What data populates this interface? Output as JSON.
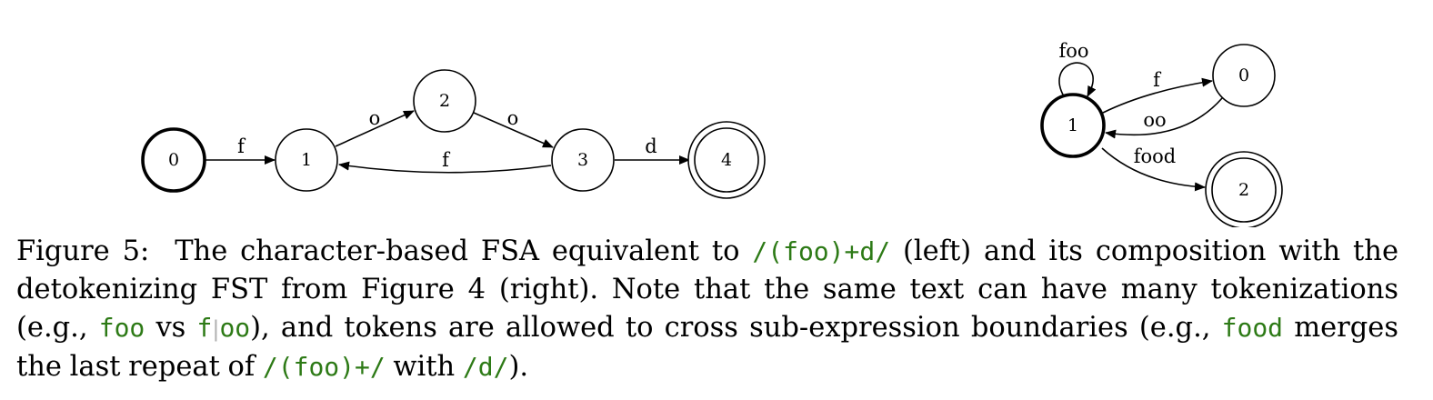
{
  "left_fsa": {
    "nodes": [
      "0",
      "1",
      "2",
      "3",
      "4"
    ],
    "edges": [
      "f",
      "o",
      "o",
      "f",
      "d"
    ]
  },
  "right_fsa": {
    "nodes": [
      "1",
      "0",
      "2"
    ],
    "edges": [
      "foo",
      "f",
      "oo",
      "food"
    ]
  },
  "caption": {
    "label": "Figure 5:",
    "t1": "The character-based FSA equivalent to ",
    "c1": "/(foo)+d/",
    "t2": " (left) and its composition with the detokenizing FST from Figure 4 (right). Note that the same text can have many tokenizations (e.g., ",
    "c2": "foo",
    "t3": " vs ",
    "c3": "f",
    "sep": "|",
    "c4": "oo",
    "t4": "), and tokens are allowed to cross sub-expression boundaries (e.g., ",
    "c5": "food",
    "t5": " merges the last repeat of ",
    "c6": "/(foo)+/",
    "t6": " with ",
    "c7": "/d/",
    "t7": ")."
  },
  "colors": {
    "code": "#2d7a16",
    "separator": "#b0b0b0"
  }
}
